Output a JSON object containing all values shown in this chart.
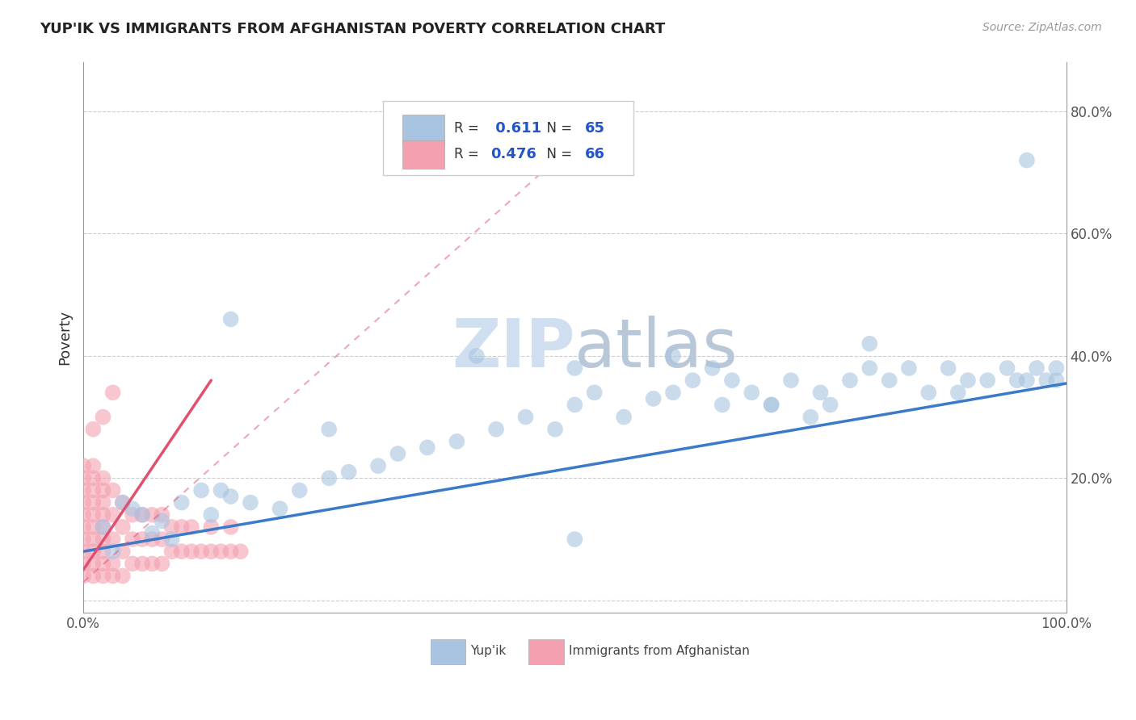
{
  "title": "YUP'IK VS IMMIGRANTS FROM AFGHANISTAN POVERTY CORRELATION CHART",
  "source": "Source: ZipAtlas.com",
  "ylabel": "Poverty",
  "yticks": [
    0.0,
    0.2,
    0.4,
    0.6,
    0.8
  ],
  "ytick_labels": [
    "",
    "20.0%",
    "40.0%",
    "60.0%",
    "80.0%"
  ],
  "xlim": [
    0.0,
    1.0
  ],
  "ylim": [
    -0.02,
    0.88
  ],
  "blue_R": 0.611,
  "blue_N": 65,
  "pink_R": 0.476,
  "pink_N": 66,
  "blue_color": "#a8c4e0",
  "pink_color": "#f4a0b0",
  "blue_line_color": "#3a7ac8",
  "pink_line_color": "#e05070",
  "legend_label_blue": "Yup'ik",
  "legend_label_pink": "Immigrants from Afghanistan",
  "watermark_color": "#d0dff0",
  "blue_seed": 101,
  "pink_seed": 202,
  "blue_x": [
    0.02,
    0.04,
    0.05,
    0.06,
    0.07,
    0.08,
    0.09,
    0.1,
    0.12,
    0.13,
    0.14,
    0.15,
    0.17,
    0.2,
    0.22,
    0.25,
    0.27,
    0.3,
    0.32,
    0.35,
    0.38,
    0.42,
    0.45,
    0.48,
    0.5,
    0.52,
    0.55,
    0.58,
    0.6,
    0.62,
    0.64,
    0.65,
    0.66,
    0.68,
    0.7,
    0.72,
    0.74,
    0.75,
    0.76,
    0.78,
    0.8,
    0.82,
    0.84,
    0.86,
    0.88,
    0.89,
    0.9,
    0.92,
    0.94,
    0.95,
    0.96,
    0.97,
    0.98,
    0.99,
    0.99,
    0.4,
    0.5,
    0.6,
    0.7,
    0.8,
    0.03,
    0.15,
    0.25,
    0.96,
    0.5
  ],
  "blue_y": [
    0.12,
    0.16,
    0.15,
    0.14,
    0.11,
    0.13,
    0.1,
    0.16,
    0.18,
    0.14,
    0.18,
    0.17,
    0.16,
    0.15,
    0.18,
    0.2,
    0.21,
    0.22,
    0.24,
    0.25,
    0.26,
    0.28,
    0.3,
    0.28,
    0.32,
    0.34,
    0.3,
    0.33,
    0.34,
    0.36,
    0.38,
    0.32,
    0.36,
    0.34,
    0.32,
    0.36,
    0.3,
    0.34,
    0.32,
    0.36,
    0.38,
    0.36,
    0.38,
    0.34,
    0.38,
    0.34,
    0.36,
    0.36,
    0.38,
    0.36,
    0.36,
    0.38,
    0.36,
    0.36,
    0.38,
    0.4,
    0.38,
    0.4,
    0.32,
    0.42,
    0.08,
    0.46,
    0.28,
    0.72,
    0.1
  ],
  "pink_x": [
    0.0,
    0.0,
    0.0,
    0.0,
    0.0,
    0.0,
    0.0,
    0.0,
    0.0,
    0.0,
    0.01,
    0.01,
    0.01,
    0.01,
    0.01,
    0.01,
    0.01,
    0.01,
    0.01,
    0.01,
    0.02,
    0.02,
    0.02,
    0.02,
    0.02,
    0.02,
    0.02,
    0.02,
    0.02,
    0.03,
    0.03,
    0.03,
    0.03,
    0.03,
    0.04,
    0.04,
    0.04,
    0.04,
    0.05,
    0.05,
    0.05,
    0.06,
    0.06,
    0.06,
    0.07,
    0.07,
    0.07,
    0.08,
    0.08,
    0.08,
    0.09,
    0.09,
    0.1,
    0.1,
    0.11,
    0.11,
    0.12,
    0.13,
    0.13,
    0.14,
    0.15,
    0.15,
    0.16,
    0.01,
    0.02,
    0.03
  ],
  "pink_y": [
    0.04,
    0.06,
    0.08,
    0.1,
    0.12,
    0.14,
    0.16,
    0.18,
    0.2,
    0.22,
    0.04,
    0.06,
    0.08,
    0.1,
    0.12,
    0.14,
    0.16,
    0.18,
    0.2,
    0.22,
    0.04,
    0.06,
    0.08,
    0.1,
    0.12,
    0.14,
    0.16,
    0.18,
    0.2,
    0.04,
    0.06,
    0.1,
    0.14,
    0.18,
    0.04,
    0.08,
    0.12,
    0.16,
    0.06,
    0.1,
    0.14,
    0.06,
    0.1,
    0.14,
    0.06,
    0.1,
    0.14,
    0.06,
    0.1,
    0.14,
    0.08,
    0.12,
    0.08,
    0.12,
    0.08,
    0.12,
    0.08,
    0.08,
    0.12,
    0.08,
    0.08,
    0.12,
    0.08,
    0.28,
    0.3,
    0.34
  ],
  "blue_line_x": [
    0.0,
    1.0
  ],
  "blue_line_y": [
    0.08,
    0.355
  ],
  "pink_line_x": [
    0.0,
    0.13
  ],
  "pink_line_y": [
    0.05,
    0.36
  ]
}
